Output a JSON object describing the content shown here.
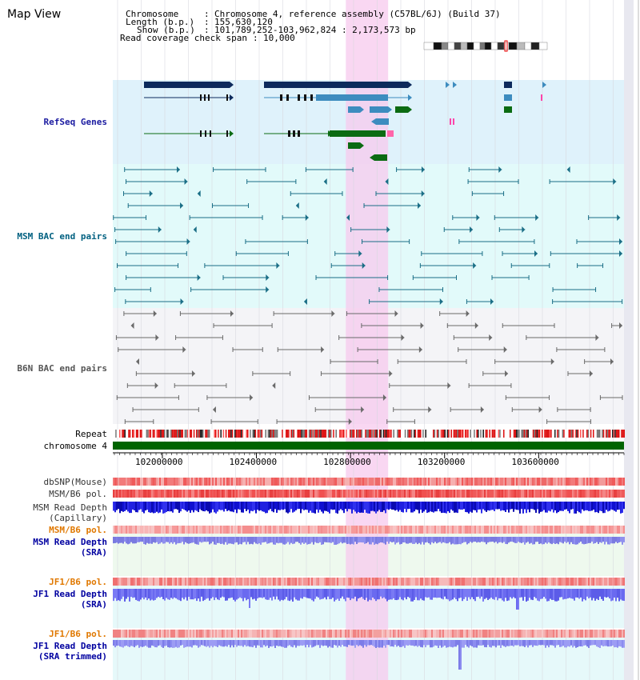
{
  "title": "Map View",
  "info": {
    "chromosome_key": "Chromosome",
    "chromosome_val": "Chromosome 4, reference assembly (C57BL/6J) (Build 37)",
    "length_key": "Length (b.p.)",
    "length_val": "155,630,120",
    "show_key": "Show (b.p.)",
    "show_val": "101,789,252-103,962,824 : 2,173,573 bp",
    "coverage_key": "Read coverage check span",
    "coverage_val": "10,000"
  },
  "axis": {
    "range_bp": [
      101789252,
      103962824
    ],
    "ticks": [
      "102000000",
      "102400000",
      "102800000",
      "103200000",
      "103600000"
    ],
    "tick_values": [
      102000000,
      102400000,
      102800000,
      103200000,
      103600000
    ]
  },
  "highlight_range_bp": [
    102780000,
    102960000
  ],
  "tracks": {
    "refseq": {
      "label": "RefSeq Genes",
      "color": "#1a1aa0"
    },
    "msm_bac": {
      "label": "MSM BAC end pairs",
      "color": "#006080"
    },
    "b6n_bac": {
      "label": "B6N BAC end pairs",
      "color": "#555555"
    },
    "repeat": {
      "label": "Repeat"
    },
    "chromosome": {
      "label": "chromosome 4",
      "color": "#006400"
    },
    "dbsnp": {
      "label": "dbSNP(Mouse)"
    },
    "msm_b6_pol_1": {
      "label": "MSM/B6 pol."
    },
    "msm_depth_cap": {
      "label_1": "MSM Read Depth",
      "label_2": "(Capillary)"
    },
    "msm_b6_pol_2": {
      "label": "MSM/B6 pol.",
      "color": "#e07800"
    },
    "msm_depth_sra": {
      "label_1": "MSM Read Depth",
      "label_2": "(SRA)",
      "color": "#0000a0"
    },
    "jf1_b6_pol_1": {
      "label": "JF1/B6 pol.",
      "color": "#e07800"
    },
    "jf1_depth_sra": {
      "label_1": "JF1 Read Depth",
      "label_2": "(SRA)",
      "color": "#0000a0"
    },
    "jf1_b6_pol_2": {
      "label": "JF1/B6 pol.",
      "color": "#e07800"
    },
    "jf1_depth_trim": {
      "label_1": "JF1 Read Depth",
      "label_2": "(SRA trimmed)",
      "color": "#0000a0"
    }
  }
}
